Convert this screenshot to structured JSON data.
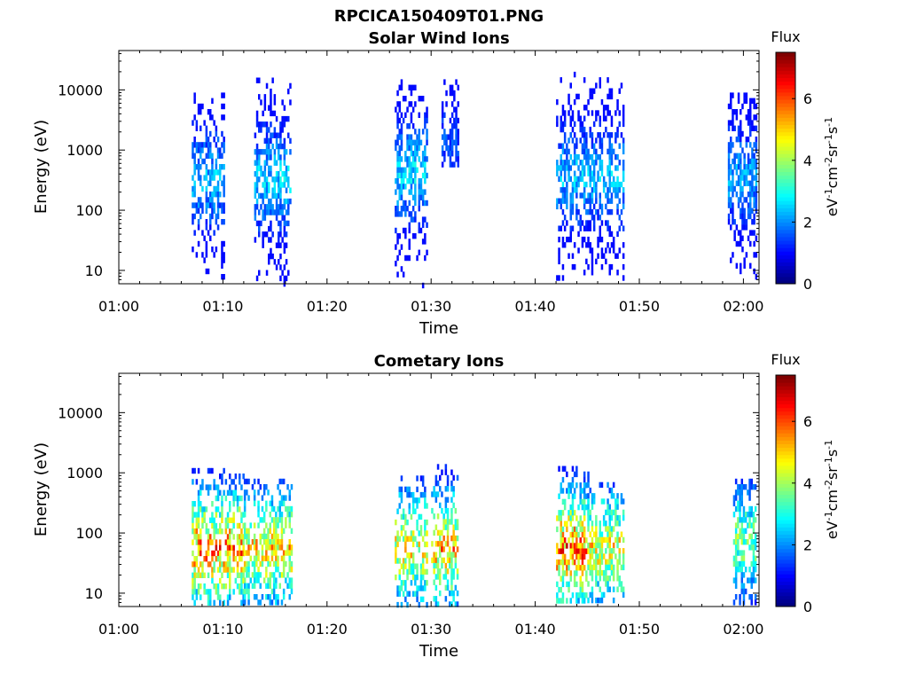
{
  "figure_title": "RPCICA150409T01.PNG",
  "chart_data": [
    {
      "type": "heatmap",
      "title": "Solar Wind Ions",
      "xlabel": "Time",
      "ylabel": "Energy (eV)",
      "xticks": [
        "01:00",
        "01:10",
        "01:20",
        "01:30",
        "01:40",
        "01:50",
        "02:00"
      ],
      "xlim": [
        0,
        61.5
      ],
      "yscale": "log",
      "ylim": [
        6,
        45000
      ],
      "yticks": [
        10,
        100,
        1000,
        10000
      ],
      "yticklabels": [
        "10",
        "100",
        "1000",
        "10000"
      ],
      "colorbar": {
        "title": "Flux",
        "label": "eV-1cm-2sr-1s-1",
        "min": 0,
        "max": 7.5,
        "ticks": [
          0,
          2,
          4,
          6
        ],
        "ticklabels": [
          "0",
          "2",
          "4",
          "6"
        ],
        "colormap": "jet"
      },
      "bursts": [
        {
          "t": [
            7.0,
            10.0
          ],
          "e": [
            8,
            9000
          ],
          "peak_e": 350,
          "level": 2.8
        },
        {
          "t": [
            13.0,
            16.5
          ],
          "e": [
            6,
            16000
          ],
          "peak_e": 350,
          "level": 3.0
        },
        {
          "t": [
            26.5,
            29.5
          ],
          "e": [
            6,
            15000
          ],
          "peak_e": 450,
          "level": 3.0
        },
        {
          "t": [
            31.0,
            32.5
          ],
          "e": [
            600,
            15000
          ],
          "peak_e": 1500,
          "level": 1.8
        },
        {
          "t": [
            42.0,
            48.5
          ],
          "e": [
            8,
            20000
          ],
          "peak_e": 400,
          "level": 2.8
        },
        {
          "t": [
            58.5,
            61.2
          ],
          "e": [
            8,
            9000
          ],
          "peak_e": 400,
          "level": 2.6
        }
      ]
    },
    {
      "type": "heatmap",
      "title": "Cometary Ions",
      "xlabel": "Time",
      "ylabel": "Energy (eV)",
      "xticks": [
        "01:00",
        "01:10",
        "01:20",
        "01:30",
        "01:40",
        "01:50",
        "02:00"
      ],
      "xlim": [
        0,
        61.5
      ],
      "yscale": "log",
      "ylim": [
        6,
        45000
      ],
      "yticks": [
        10,
        100,
        1000,
        10000
      ],
      "yticklabels": [
        "10",
        "100",
        "1000",
        "10000"
      ],
      "colorbar": {
        "title": "Flux",
        "label": "eV-1cm-2sr-1s-1",
        "min": 0,
        "max": 7.5,
        "ticks": [
          0,
          2,
          4,
          6
        ],
        "ticklabels": [
          "0",
          "2",
          "4",
          "6"
        ],
        "colormap": "jet"
      },
      "bursts": [
        {
          "t": [
            7.0,
            12.0
          ],
          "e": [
            7,
            1200
          ],
          "peak_e": 60,
          "level": 6.5
        },
        {
          "t": [
            12.0,
            16.5
          ],
          "e": [
            7,
            800
          ],
          "peak_e": 60,
          "level": 5.8
        },
        {
          "t": [
            26.5,
            29.5
          ],
          "e": [
            7,
            900
          ],
          "peak_e": 60,
          "level": 5.5
        },
        {
          "t": [
            30.0,
            32.5
          ],
          "e": [
            7,
            1400
          ],
          "peak_e": 60,
          "level": 6.0
        },
        {
          "t": [
            42.0,
            45.0
          ],
          "e": [
            7,
            1300
          ],
          "peak_e": 60,
          "level": 6.8
        },
        {
          "t": [
            45.0,
            48.5
          ],
          "e": [
            7,
            700
          ],
          "peak_e": 60,
          "level": 5.5
        },
        {
          "t": [
            59.0,
            61.2
          ],
          "e": [
            7,
            800
          ],
          "peak_e": 80,
          "level": 4.5
        }
      ]
    }
  ]
}
